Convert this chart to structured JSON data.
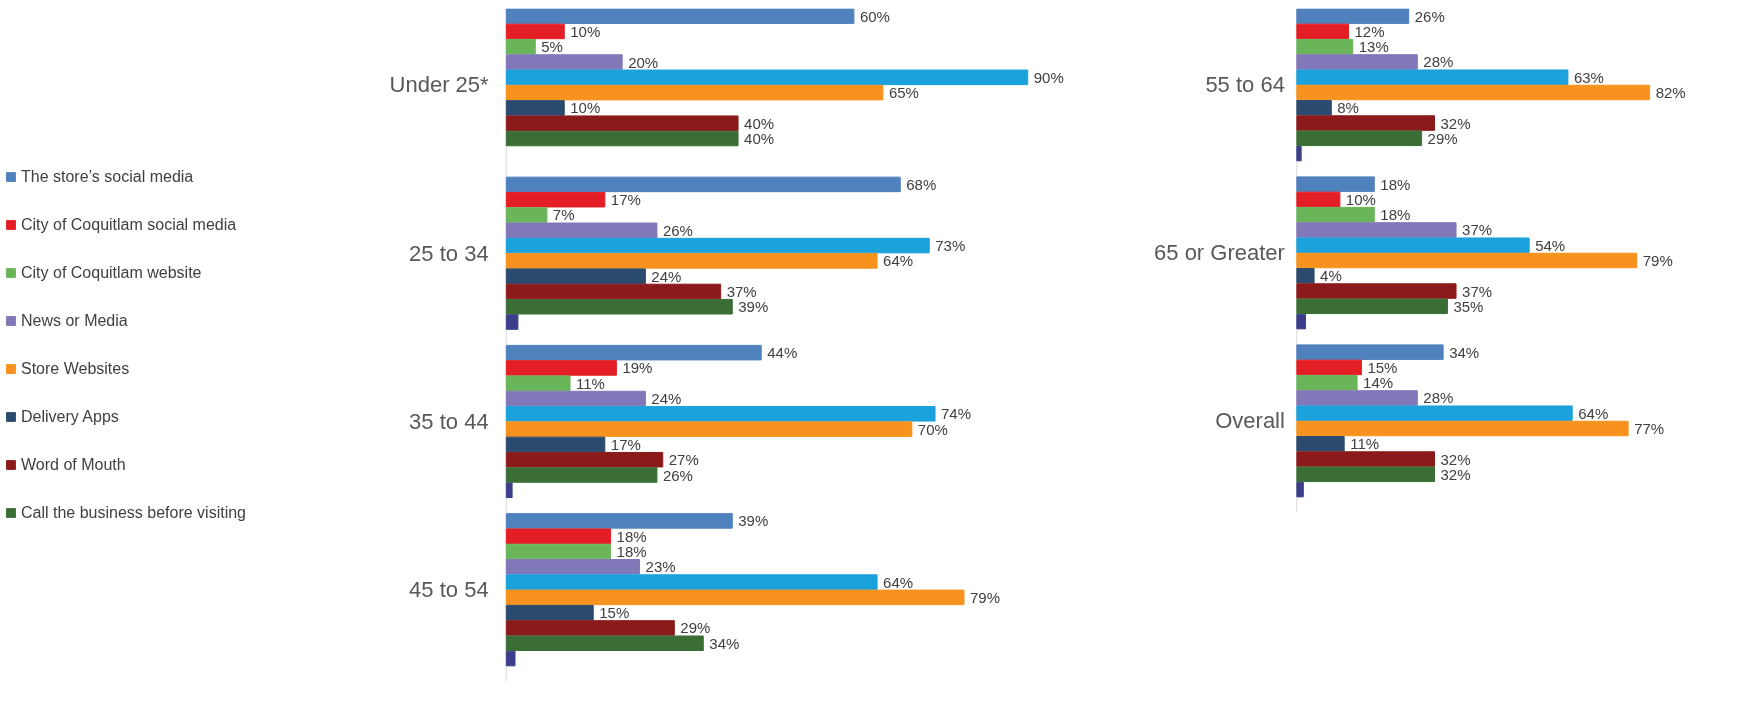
{
  "chart_data": [
    {
      "type": "bar",
      "orientation": "horizontal",
      "legend": "left",
      "grid": false,
      "categories": [
        "Under 25*",
        "25 to 34",
        "35 to 44",
        "45 to 54"
      ],
      "series": [
        {
          "name": "The store’s social media",
          "color": "#4f81bd",
          "values": [
            60,
            68,
            44,
            39
          ],
          "value_labels": [
            "60%",
            "68%",
            "44%",
            "39%"
          ]
        },
        {
          "name": "City of Coquitlam social media",
          "color": "#e31e24",
          "values": [
            10,
            17,
            19,
            18
          ],
          "value_labels": [
            "10%",
            "17%",
            "19%",
            "18%"
          ]
        },
        {
          "name": "City of Coquitlam website",
          "color": "#6ab55a",
          "values": [
            5,
            7,
            11,
            18
          ],
          "value_labels": [
            "5%",
            "7%",
            "11%",
            "18%"
          ]
        },
        {
          "name": "News or Media",
          "color": "#8078b8",
          "values": [
            20,
            26,
            24,
            23
          ],
          "value_labels": [
            "20%",
            "26%",
            "24%",
            "23%"
          ]
        },
        {
          "color": "#1ba1dc",
          "values": [
            90,
            73,
            74,
            64
          ],
          "value_labels": [
            "90%",
            "73%",
            "74%",
            "64%"
          ]
        },
        {
          "name": "Store Websites",
          "color": "#f7921e",
          "values": [
            65,
            64,
            70,
            79
          ],
          "value_labels": [
            "65%",
            "64%",
            "70%",
            "79%"
          ]
        },
        {
          "name": "Delivery Apps",
          "color": "#2a4a6e",
          "values": [
            10,
            24,
            17,
            15
          ],
          "value_labels": [
            "10%",
            "24%",
            "17%",
            "15%"
          ]
        },
        {
          "name": "Word of Mouth",
          "color": "#8b1a1a",
          "values": [
            40,
            37,
            27,
            29
          ],
          "value_labels": [
            "40%",
            "37%",
            "27%",
            "29%"
          ]
        },
        {
          "name": "Call the business before visiting",
          "color": "#3a6e35",
          "values": [
            40,
            39,
            26,
            34
          ],
          "value_labels": [
            "40%",
            "39%",
            "26%",
            "34%"
          ]
        },
        {
          "color": "#3b3f8a",
          "values": [
            null,
            2,
            1,
            1.5
          ],
          "value_labels": [
            null,
            null,
            null,
            null
          ]
        }
      ]
    },
    {
      "type": "bar",
      "orientation": "horizontal",
      "legend": false,
      "grid": false,
      "categories": [
        "55 to 64",
        "65 or Greater",
        "Overall"
      ],
      "series": [
        {
          "color": "#4f81bd",
          "values": [
            26,
            18,
            34
          ],
          "value_labels": [
            "26%",
            "18%",
            "34%"
          ]
        },
        {
          "color": "#e31e24",
          "values": [
            12,
            10,
            15
          ],
          "value_labels": [
            "12%",
            "10%",
            "15%"
          ]
        },
        {
          "color": "#6ab55a",
          "values": [
            13,
            18,
            14
          ],
          "value_labels": [
            "13%",
            "18%",
            "14%"
          ]
        },
        {
          "color": "#8078b8",
          "values": [
            28,
            37,
            28
          ],
          "value_labels": [
            "28%",
            "37%",
            "28%"
          ]
        },
        {
          "color": "#1ba1dc",
          "values": [
            63,
            54,
            64
          ],
          "value_labels": [
            "63%",
            "54%",
            "64%"
          ]
        },
        {
          "color": "#f7921e",
          "values": [
            82,
            79,
            77
          ],
          "value_labels": [
            "82%",
            "79%",
            "77%"
          ]
        },
        {
          "color": "#2a4a6e",
          "values": [
            8,
            4,
            11
          ],
          "value_labels": [
            "8%",
            "4%",
            "11%"
          ]
        },
        {
          "color": "#8b1a1a",
          "values": [
            32,
            37,
            32
          ],
          "value_labels": [
            "32%",
            "37%",
            "32%"
          ]
        },
        {
          "color": "#3a6e35",
          "values": [
            29,
            35,
            32
          ],
          "value_labels": [
            "29%",
            "35%",
            "32%"
          ]
        },
        {
          "color": "#3b3f8a",
          "values": [
            1,
            2,
            1.5
          ],
          "value_labels": [
            null,
            null,
            null
          ]
        }
      ]
    }
  ]
}
